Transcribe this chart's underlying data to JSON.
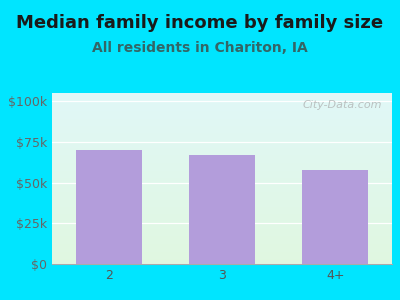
{
  "title": "Median family income by family size",
  "subtitle": "All residents in Chariton, IA",
  "categories": [
    "2",
    "3",
    "4+"
  ],
  "values": [
    70000,
    67000,
    58000
  ],
  "bar_color": "#b39ddb",
  "bg_outer": "#00e5ff",
  "yticks": [
    0,
    25000,
    50000,
    75000,
    100000
  ],
  "ytick_labels": [
    "$0",
    "$25k",
    "$50k",
    "$75k",
    "$100k"
  ],
  "ylim": [
    0,
    105000
  ],
  "title_fontsize": 13,
  "subtitle_fontsize": 10,
  "tick_fontsize": 9,
  "watermark": "City-Data.com"
}
